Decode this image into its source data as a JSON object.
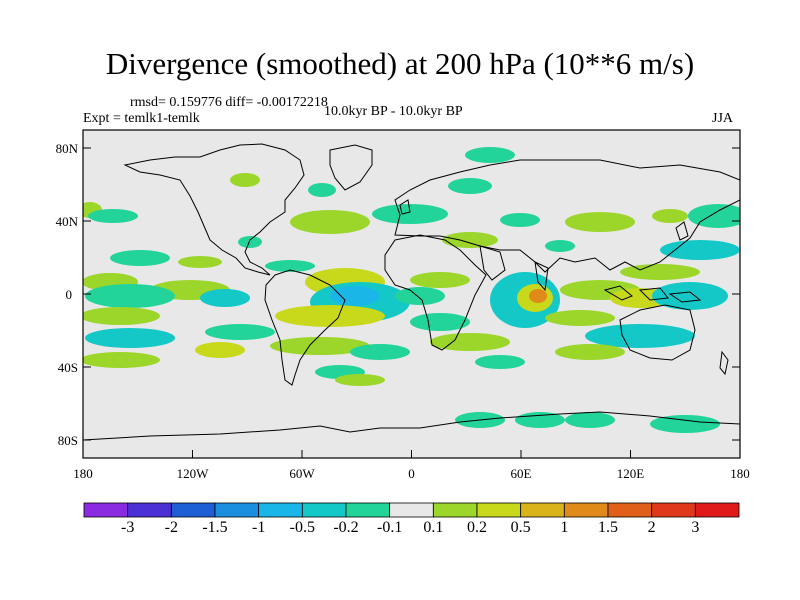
{
  "title": "Divergence (smoothed) at 200 hPa (10**6 m/s)",
  "stats": "rmsd= 0.159776  diff= -0.00172218",
  "experiment": "Expt = temlk1-temlk",
  "period": "10.0kyr BP - 10.0kyr BP",
  "season": "JJA",
  "lat_labels": [
    "80N",
    "40N",
    "0",
    "40S",
    "80S"
  ],
  "lon_labels": [
    "180",
    "120W",
    "60W",
    "0",
    "60E",
    "120E",
    "180"
  ],
  "colorbar": {
    "labels": [
      "-3",
      "-2",
      "-1.5",
      "-1",
      "-0.5",
      "-0.2",
      "-0.1",
      "0.1",
      "0.2",
      "0.5",
      "1",
      "1.5",
      "2",
      "3"
    ],
    "colors": [
      "#8a2be2",
      "#4b30d6",
      "#1f5fd6",
      "#1a8fe0",
      "#1bb6e8",
      "#14c8c8",
      "#22d49a",
      "#e8e8e8",
      "#9cd62a",
      "#c8d81a",
      "#d8b41a",
      "#e08a1a",
      "#e0601a",
      "#e0381a",
      "#e01a1a"
    ]
  },
  "map_colors": {
    "ocean": "#e8e8e8",
    "neg_weak": "#22d49a",
    "neg_mid": "#14c8c8",
    "neg_strong": "#1bb6e8",
    "neg_core": "#1a8fe0",
    "pos_weak": "#9cd62a",
    "pos_mid": "#c8d81a",
    "pos_strong": "#d8b41a",
    "pos_core": "#e08a1a"
  }
}
